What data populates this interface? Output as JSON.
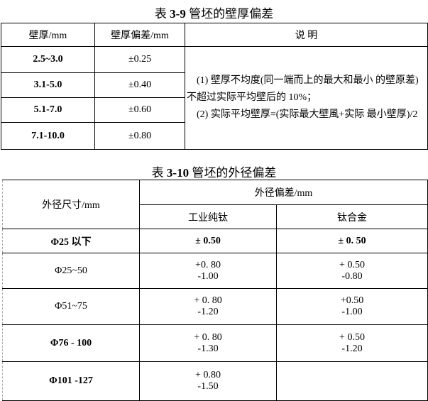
{
  "table1": {
    "title_prefix": "表 ",
    "title_number": "3-9",
    "title_suffix": " 管坯的壁厚偏差",
    "headers": [
      "壁厚/mm",
      "壁厚偏差/mm",
      "说 明"
    ],
    "rows": [
      {
        "thickness": "2.5~3.0",
        "tolerance": "±0.25"
      },
      {
        "thickness": "3.1-5.0",
        "tolerance": "±0.40"
      },
      {
        "thickness": "5.1-7.0",
        "tolerance": "±0.60"
      },
      {
        "thickness": "7.1-10.0",
        "tolerance": "±0.80"
      }
    ],
    "note_1": "　(1) 壁厚不均度(同一端而上的最大和最小 的壁原差)不超过实际平均壁后的 10%；",
    "note_2": "　(2) 实际平均壁厚=(实际最大壁風+实际 最小壁厚)/2"
  },
  "table2": {
    "title_prefix": "表 ",
    "title_number": "3-10",
    "title_suffix": " 管坯的外径偏差",
    "header_size": "外径尺寸/mm",
    "header_deviation": "外径偏差/mm",
    "header_pure": "工业纯钛",
    "header_alloy": "钛合金",
    "rows": [
      {
        "size": "Φ25 以下",
        "pure_plus": "± 0.50",
        "pure_minus": "",
        "alloy_plus": "± 0. 50",
        "alloy_minus": ""
      },
      {
        "size": "Φ25~50",
        "pure_plus": "+0. 80",
        "pure_minus": "-1.00",
        "alloy_plus": "+ 0.50",
        "alloy_minus": "-0.80"
      },
      {
        "size": "Φ51~75",
        "pure_plus": "+ 0. 80",
        "pure_minus": "-1.20",
        "alloy_plus": "+0.50",
        "alloy_minus": "-1.00"
      },
      {
        "size": "Φ76 - 100",
        "pure_plus": "+ 0. 80",
        "pure_minus": "-1.30",
        "alloy_plus": "+ 0.50",
        "alloy_minus": "-1.20"
      },
      {
        "size": "Φ101 -127",
        "pure_plus": "+ 0.80",
        "pure_minus": "-1.50",
        "alloy_plus": "",
        "alloy_minus": ""
      }
    ]
  }
}
